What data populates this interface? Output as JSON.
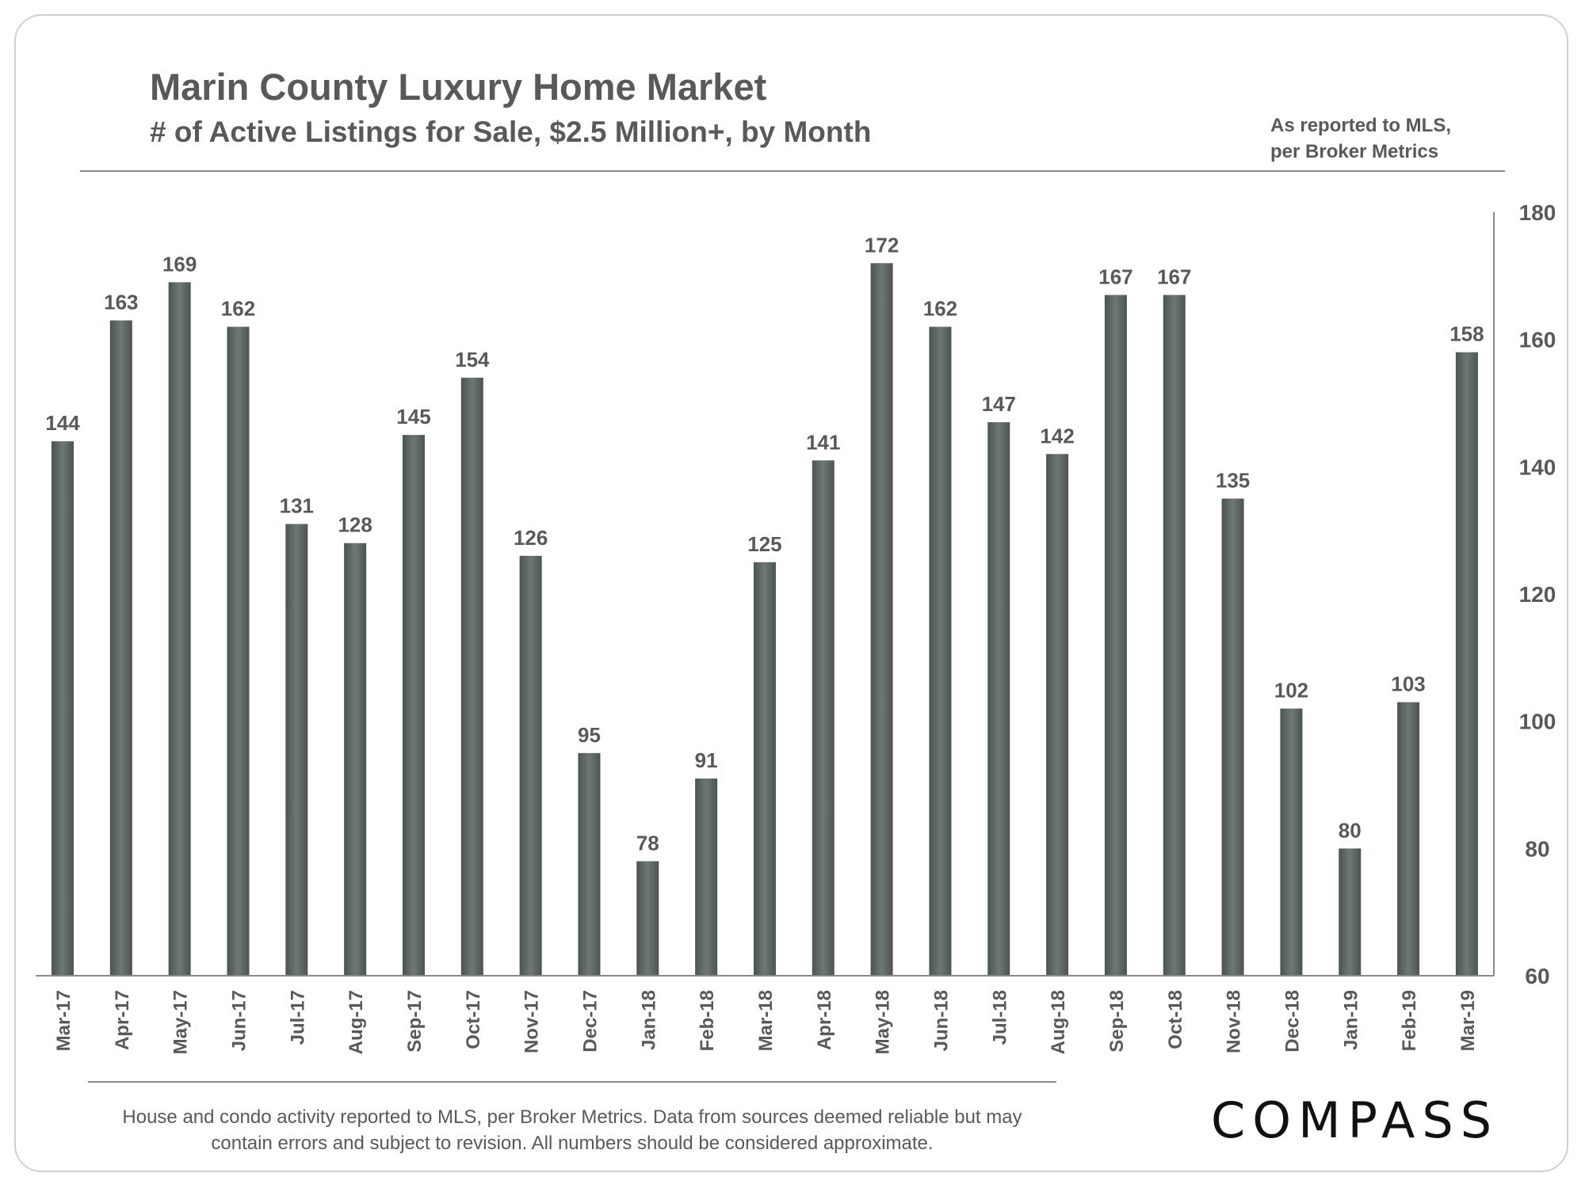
{
  "header": {
    "title": "Marin County Luxury Home Market",
    "subtitle": "# of Active Listings for Sale, $2.5 Million+, by Month",
    "note_line1": "As reported to MLS,",
    "note_line2": "per Broker Metrics"
  },
  "footer": {
    "line1": "House and condo activity reported to MLS, per Broker Metrics. Data from sources deemed reliable but may",
    "line2": "contain errors and subject to revision. All numbers should be considered approximate.",
    "logo": "COMPASS"
  },
  "colors": {
    "bar_dark": "#4c5450",
    "bar_light": "#6f7872",
    "text": "#595959"
  },
  "chart_data": {
    "type": "bar",
    "title": "Marin County Luxury Home Market",
    "subtitle": "# of Active Listings for Sale, $2.5 Million+, by Month",
    "xlabel": "",
    "ylabel": "",
    "categories": [
      "Mar-17",
      "Apr-17",
      "May-17",
      "Jun-17",
      "Jul-17",
      "Aug-17",
      "Sep-17",
      "Oct-17",
      "Nov-17",
      "Dec-17",
      "Jan-18",
      "Feb-18",
      "Mar-18",
      "Apr-18",
      "May-18",
      "Jun-18",
      "Jul-18",
      "Aug-18",
      "Sep-18",
      "Oct-18",
      "Nov-18",
      "Dec-18",
      "Jan-19",
      "Feb-19",
      "Mar-19"
    ],
    "values": [
      144,
      163,
      169,
      162,
      131,
      128,
      145,
      154,
      126,
      95,
      78,
      91,
      125,
      141,
      172,
      162,
      147,
      142,
      167,
      167,
      135,
      102,
      80,
      103,
      158
    ],
    "ylim": [
      60,
      180
    ],
    "yticks": [
      60,
      80,
      100,
      120,
      140,
      160,
      180
    ],
    "yaxis_side": "right",
    "grid": false,
    "data_labels": true
  }
}
